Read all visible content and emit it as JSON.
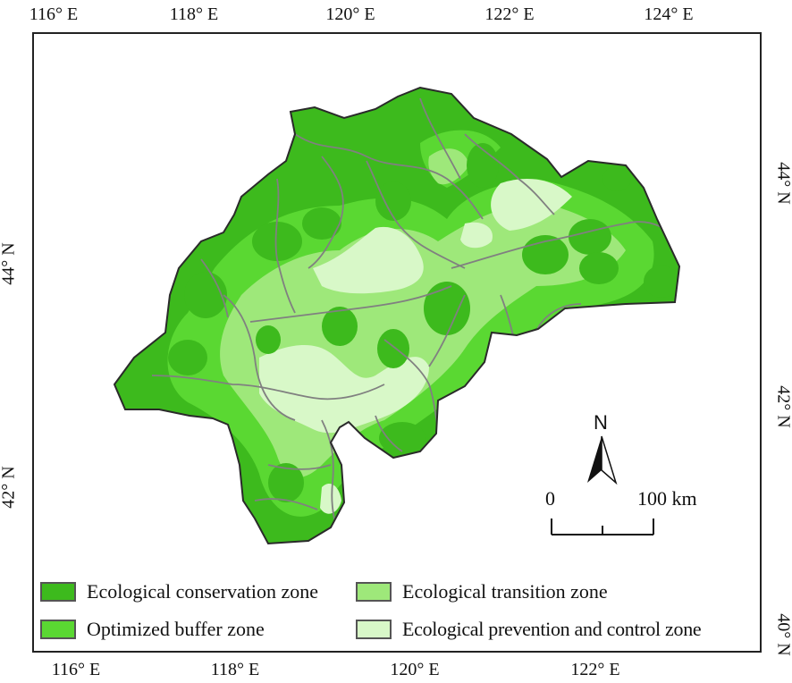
{
  "axes": {
    "top": [
      "116° E",
      "118° E",
      "120° E",
      "122° E",
      "124° E"
    ],
    "bottom": [
      "116° E",
      "118° E",
      "120° E",
      "122° E"
    ],
    "left": [
      "44° N",
      "42° N"
    ],
    "right": [
      "44° N",
      "42° N",
      "40° N"
    ]
  },
  "colors": {
    "conservation": "#3dba1d",
    "buffer": "#5ad832",
    "transition": "#9ee87a",
    "prevention": "#d8f8c8",
    "boundary": "#808080"
  },
  "legend": [
    {
      "label": "Ecological conservation zone",
      "color": "#3dba1d"
    },
    {
      "label": "Ecological transition zone",
      "color": "#9ee87a"
    },
    {
      "label": "Optimized buffer zone",
      "color": "#5ad832"
    },
    {
      "label": "Ecological prevention and control zone",
      "color": "#d8f8c8"
    }
  ],
  "north_arrow": {
    "label": "N"
  },
  "scale_bar": {
    "start": "0",
    "end": "100 km"
  }
}
